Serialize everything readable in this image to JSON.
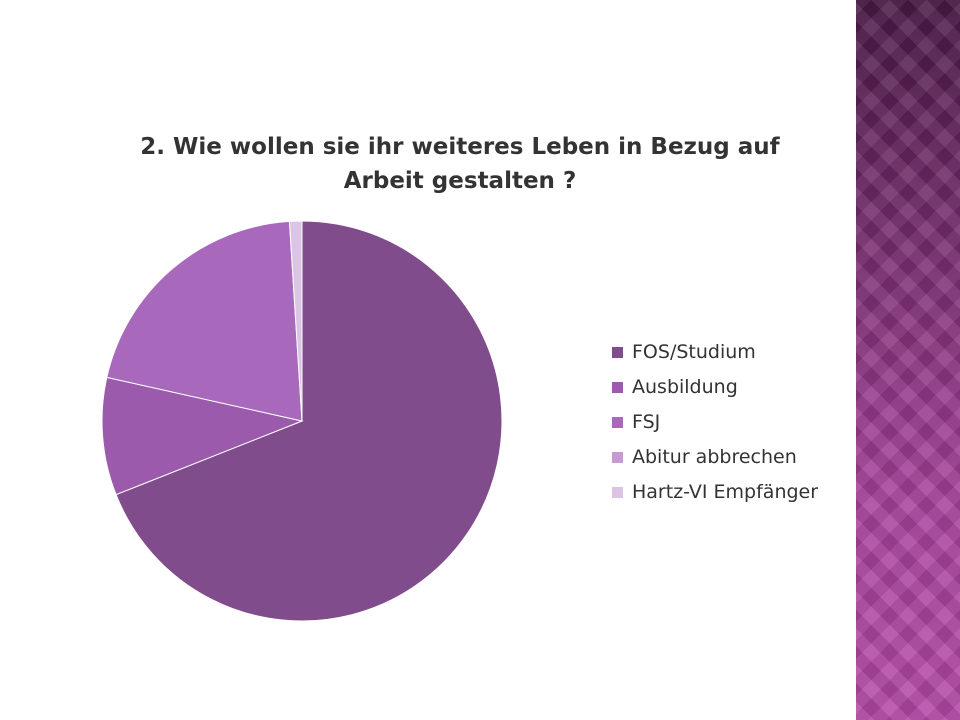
{
  "chart_data": {
    "type": "pie",
    "title": "2. Wie wollen sie ihr weiteres Leben in Bezug auf Arbeit gestalten ?",
    "title_lines": [
      "2. Wie wollen sie ihr weiteres Leben in Bezug auf",
      "Arbeit gestalten ?"
    ],
    "categories": [
      "FOS/Studium",
      "Ausbildung",
      "FSJ",
      "Abitur abbrechen",
      "Hartz-VI Empfänger"
    ],
    "values": [
      69,
      9.5,
      20.5,
      0,
      1
    ],
    "colors": [
      "#804c8c",
      "#9c5aac",
      "#a868bc",
      "#c79ad4",
      "#dbc4e4"
    ],
    "start_angle": "12 o'clock",
    "direction": "clockwise",
    "legend_position": "right"
  },
  "decoration": {
    "side_band_color": "#8e3884"
  }
}
